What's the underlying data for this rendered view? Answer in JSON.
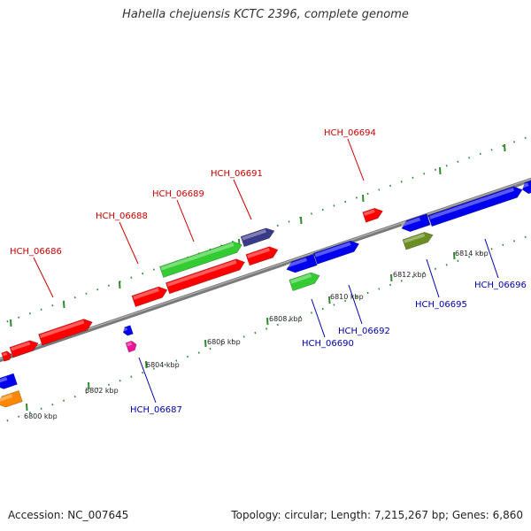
{
  "header": {
    "title": "Hahella chejuensis KCTC 2396, complete genome"
  },
  "footer": {
    "accession": "Accession: NC_007645",
    "summary": "Topology: circular; Length: 7,215,267 bp; Genes: 6,860"
  },
  "colors": {
    "backbone": "#808080",
    "tick": "#2e8b2e",
    "top_strand_label": "#cc0000",
    "bottom_strand_label": "#0000aa",
    "red": "#ff0000",
    "blue": "#0000ee",
    "green": "#33cc33",
    "slate": "#3a3a8a",
    "olive": "#6b8e23",
    "magenta": "#ee1199",
    "orange": "#ff8800"
  },
  "genes_top": [
    {
      "id": "HCH_06686"
    },
    {
      "id": "HCH_06688"
    },
    {
      "id": "HCH_06689"
    },
    {
      "id": "HCH_06691"
    },
    {
      "id": "HCH_06694"
    }
  ],
  "genes_bottom": [
    {
      "id": "HCH_06687"
    },
    {
      "id": "HCH_06690"
    },
    {
      "id": "HCH_06692"
    },
    {
      "id": "HCH_06695"
    },
    {
      "id": "HCH_06696"
    }
  ],
  "scale_labels": [
    "6800 kbp",
    "6802 kbp",
    "6804 kbp",
    "6806 kbp",
    "6808 kbp",
    "6810 kbp",
    "6812 kbp",
    "6814 kbp"
  ]
}
